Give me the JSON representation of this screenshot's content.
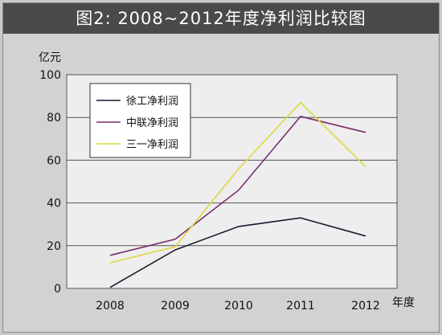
{
  "title": "图2: 2008~2012年度净利润比较图",
  "chart_data": {
    "type": "line",
    "title": "图2: 2008~2012年度净利润比较图",
    "ylabel": "亿元",
    "xlabel": "年度",
    "x": [
      "2008",
      "2009",
      "2010",
      "2011",
      "2012"
    ],
    "ylim": [
      0,
      100
    ],
    "yticks": [
      0,
      20,
      40,
      60,
      80,
      100
    ],
    "grid": true,
    "legend": "top-left",
    "series": [
      {
        "name": "徐工净利润",
        "color": "#1a1a2e",
        "values": [
          0.5,
          18,
          29,
          33,
          24.5
        ]
      },
      {
        "name": "中联净利润",
        "color": "#7a2d6e",
        "values": [
          15.5,
          23,
          46,
          80.5,
          73
        ]
      },
      {
        "name": "三一净利润",
        "color": "#dada3a",
        "values": [
          12,
          19.5,
          56,
          87,
          57
        ]
      }
    ]
  }
}
